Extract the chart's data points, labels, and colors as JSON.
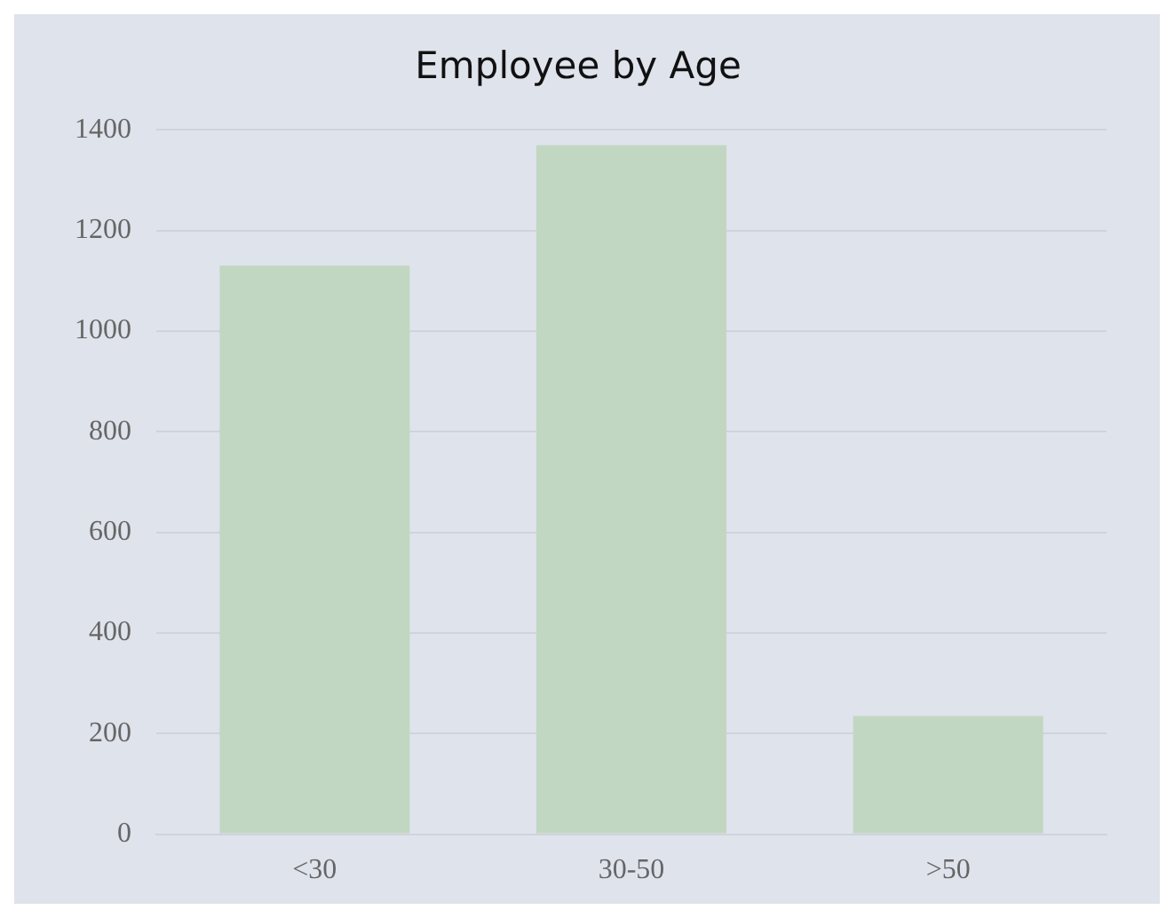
{
  "chart_data": {
    "type": "bar",
    "title": "Employee by Age",
    "categories": [
      "<30",
      "30-50",
      ">50"
    ],
    "values": [
      1130,
      1370,
      235
    ],
    "color": "#c2d7c1",
    "ylim": [
      0,
      1400
    ],
    "yticks": [
      0,
      200,
      400,
      600,
      800,
      1000,
      1200,
      1400
    ],
    "grid": "y",
    "legend": false
  }
}
